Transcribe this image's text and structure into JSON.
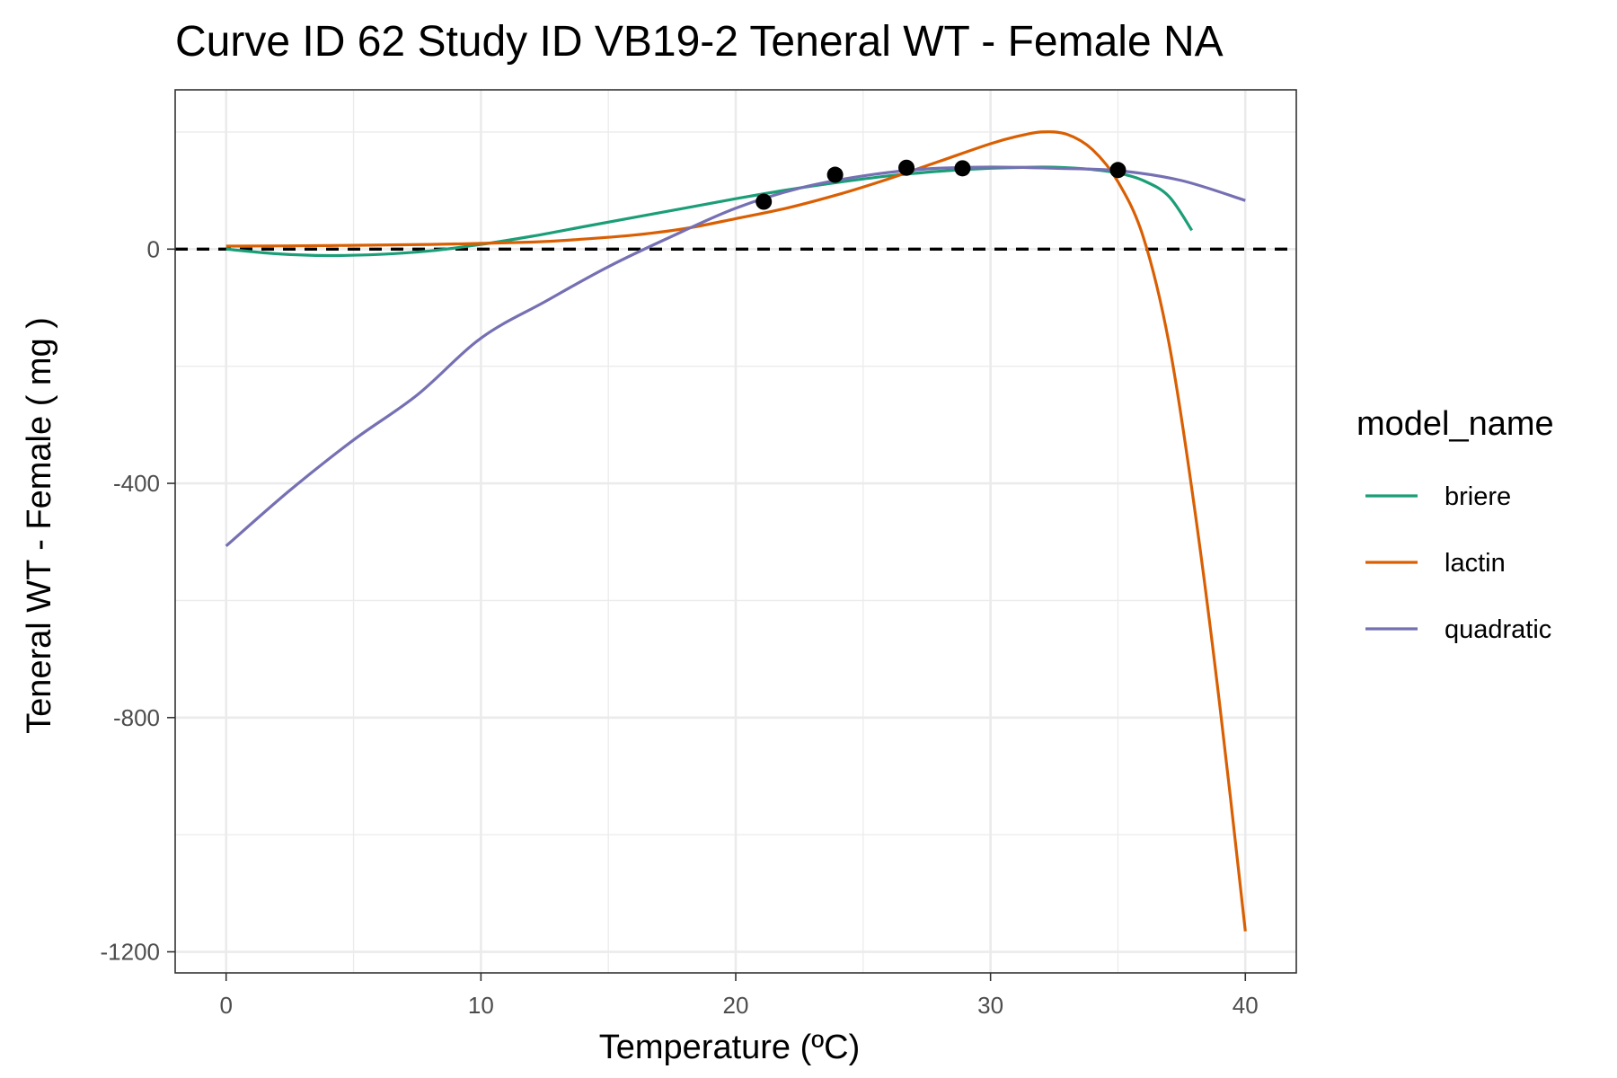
{
  "chart_data": {
    "type": "line",
    "title": "Curve ID 62 Study ID VB19-2 Teneral WT - Female NA",
    "xlabel": "Temperature (ºC)",
    "ylabel": "Teneral WT - Female ( mg )",
    "xlim": [
      -2,
      42
    ],
    "ylim": [
      -1236,
      272
    ],
    "x_ticks": [
      0,
      10,
      20,
      30,
      40
    ],
    "x_tick_labels": [
      "0",
      "10",
      "20",
      "30",
      "40"
    ],
    "y_ticks": [
      0,
      -400,
      -800,
      -1200
    ],
    "y_tick_labels": [
      "0",
      "-400",
      "-800",
      "-1200"
    ],
    "grid": true,
    "reference_line": {
      "y": 0,
      "style": "dashed",
      "color": "#000000"
    },
    "legend": {
      "title": "model_name",
      "position": "right"
    },
    "series": [
      {
        "name": "briere",
        "color": "#1B9E77",
        "x": [
          0,
          2,
          4,
          6,
          8,
          10,
          12,
          14,
          16,
          18,
          20,
          22,
          24,
          26,
          28,
          30,
          32,
          33,
          34,
          35,
          36,
          37,
          37.9
        ],
        "y": [
          0,
          -8,
          -11,
          -9,
          -3,
          8,
          22,
          38,
          54,
          70,
          86,
          101,
          114,
          125,
          133,
          138,
          140,
          139,
          136,
          130,
          117,
          90,
          32
        ]
      },
      {
        "name": "lactin",
        "color": "#D95F02",
        "x": [
          0,
          4,
          8,
          12,
          14,
          16,
          18,
          20,
          22,
          24,
          26,
          28,
          30,
          31,
          32,
          33,
          34,
          35,
          36,
          37,
          38,
          39,
          40
        ],
        "y": [
          5,
          6,
          8,
          12,
          17,
          24,
          35,
          52,
          70,
          93,
          120,
          150,
          180,
          192,
          200,
          196,
          170,
          115,
          20,
          -160,
          -440,
          -780,
          -1165
        ]
      },
      {
        "name": "quadratic",
        "color": "#7570B3",
        "x": [
          0,
          2.5,
          5,
          7.5,
          10,
          12.5,
          15,
          17.5,
          20,
          22.5,
          25,
          27.5,
          30,
          32.5,
          35,
          37.5,
          40
        ],
        "y": [
          -507,
          -412,
          -326,
          -249,
          -152,
          -90,
          -30,
          22,
          70,
          104,
          125,
          137,
          140,
          138,
          134,
          117,
          83
        ]
      }
    ],
    "points": {
      "color": "#000000",
      "x": [
        21.1,
        23.9,
        26.7,
        28.9,
        35
      ],
      "y": [
        81,
        127,
        139,
        138,
        135
      ]
    }
  }
}
